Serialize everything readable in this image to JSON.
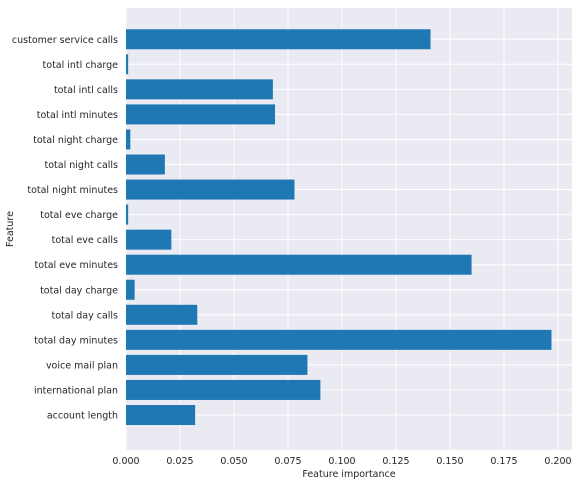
{
  "chart_data": {
    "type": "bar",
    "orientation": "horizontal",
    "xlabel": "Feature importance",
    "ylabel": "Feature",
    "xlim": [
      0,
      0.2065
    ],
    "xticks": [
      0.0,
      0.025,
      0.05,
      0.075,
      0.1,
      0.125,
      0.15,
      0.175,
      0.2
    ],
    "xtick_labels": [
      "0.000",
      "0.025",
      "0.050",
      "0.075",
      "0.100",
      "0.125",
      "0.150",
      "0.175",
      "0.200"
    ],
    "grid": true,
    "colors": {
      "bar": "#1f77b4",
      "background": "#eaeaf2",
      "grid": "#ffffff",
      "text": "#262626"
    },
    "categories": [
      "account length",
      "international plan",
      "voice mail plan",
      "total day minutes",
      "total day calls",
      "total day charge",
      "total eve minutes",
      "total eve calls",
      "total eve charge",
      "total night minutes",
      "total night calls",
      "total night charge",
      "total intl minutes",
      "total intl calls",
      "total intl charge",
      "customer service calls"
    ],
    "values": [
      0.032,
      0.09,
      0.084,
      0.197,
      0.033,
      0.004,
      0.16,
      0.021,
      0.001,
      0.078,
      0.018,
      0.002,
      0.069,
      0.068,
      0.001,
      0.141
    ]
  }
}
